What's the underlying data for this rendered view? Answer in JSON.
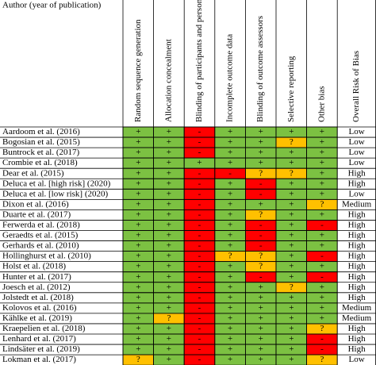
{
  "header": {
    "author": "Author (year of publication)",
    "domains": [
      "Random sequence generation",
      "Allocation concealment",
      "Blinding of participants and personnel",
      "Incomplete outcome data",
      "Blinding of outcome assessors",
      "Selective reporting",
      "Other bias"
    ],
    "overall": "Overall Risk of Bias"
  },
  "colors": {
    "+": "#7cc142",
    "?": "#ffc000",
    "-": "#ff0000"
  },
  "table": {
    "rows": [
      {
        "author": "Aardoom et al. (2016)",
        "ratings": [
          "+",
          "+",
          "-",
          "+",
          "+",
          "+",
          "+"
        ],
        "overall": "Low"
      },
      {
        "author": "Bogosian et al. (2015)",
        "ratings": [
          "+",
          "+",
          "-",
          "+",
          "+",
          "?",
          "+"
        ],
        "overall": "Low"
      },
      {
        "author": "Buntrock et al. (2017)",
        "ratings": [
          "+",
          "+",
          "-",
          "+",
          "+",
          "+",
          "+"
        ],
        "overall": "Low"
      },
      {
        "author": "Crombie et al. (2018)",
        "ratings": [
          "+",
          "+",
          "+",
          "+",
          "+",
          "+",
          "+"
        ],
        "overall": "Low"
      },
      {
        "author": "Dear et al. (2015)",
        "ratings": [
          "+",
          "+",
          "-",
          "-",
          "?",
          "?",
          "+"
        ],
        "overall": "High"
      },
      {
        "author": "Deluca  et al. [high risk] (2020)",
        "ratings": [
          "+",
          "+",
          "-",
          "+",
          "-",
          "+",
          "+"
        ],
        "overall": "High"
      },
      {
        "author": "Deluca  et al. [low risk] (2020)",
        "ratings": [
          "+",
          "+",
          "-",
          "+",
          "-",
          "+",
          "+"
        ],
        "overall": "Low"
      },
      {
        "author": "Dixon et al. (2016)",
        "ratings": [
          "+",
          "+",
          "-",
          "+",
          "+",
          "+",
          "?"
        ],
        "overall": "Medium"
      },
      {
        "author": "Duarte et al. (2017)",
        "ratings": [
          "+",
          "+",
          "-",
          "+",
          "?",
          "+",
          "+"
        ],
        "overall": "High"
      },
      {
        "author": "Ferwerda et al. (2018)",
        "ratings": [
          "+",
          "+",
          "-",
          "+",
          "-",
          "+",
          "-"
        ],
        "overall": "High"
      },
      {
        "author": "Geraedts et al. (2015)",
        "ratings": [
          "+",
          "+",
          "-",
          "+",
          "-",
          "+",
          "+"
        ],
        "overall": "High"
      },
      {
        "author": "Gerhards et al. (2010)",
        "ratings": [
          "+",
          "+",
          "-",
          "+",
          "-",
          "+",
          "+"
        ],
        "overall": "High"
      },
      {
        "author": "Hollinghurst et al. (2010)",
        "ratings": [
          "+",
          "+",
          "-",
          "?",
          "?",
          "+",
          "-"
        ],
        "overall": "High"
      },
      {
        "author": "Holst et al. (2018)",
        "ratings": [
          "+",
          "+",
          "-",
          "+",
          "?",
          "+",
          "+"
        ],
        "overall": "High"
      },
      {
        "author": "Hunter et al. (2017)",
        "ratings": [
          "+",
          "+",
          "-",
          "+",
          "-",
          "+",
          "-"
        ],
        "overall": "High"
      },
      {
        "author": "Joesch et al. (2012)",
        "ratings": [
          "+",
          "+",
          "-",
          "+",
          "+",
          "?",
          "+"
        ],
        "overall": "High"
      },
      {
        "author": "Jolstedt et al. (2018)",
        "ratings": [
          "+",
          "+",
          "-",
          "+",
          "+",
          "+",
          "+"
        ],
        "overall": "High"
      },
      {
        "author": "Kolovos et al. (2016)",
        "ratings": [
          "+",
          "+",
          "-",
          "+",
          "+",
          "+",
          "+"
        ],
        "overall": "Medium"
      },
      {
        "author": "Kählke et al. (2019)",
        "ratings": [
          "+",
          "?",
          "-",
          "+",
          "+",
          "+",
          "+"
        ],
        "overall": "Medium"
      },
      {
        "author": "Kraepelien et al. (2018)",
        "ratings": [
          "+",
          "+",
          "-",
          "+",
          "+",
          "+",
          "?"
        ],
        "overall": "High"
      },
      {
        "author": "Lenhard et al. (2017)",
        "ratings": [
          "+",
          "+",
          "-",
          "+",
          "+",
          "+",
          "-"
        ],
        "overall": "High"
      },
      {
        "author": "Lindsäter et al. (2019)",
        "ratings": [
          "+",
          "+",
          "-",
          "+",
          "+",
          "+",
          "-"
        ],
        "overall": "High"
      },
      {
        "author": "Lokman et al. (2017)",
        "ratings": [
          "?",
          "+",
          "-",
          "+",
          "+",
          "+",
          "?"
        ],
        "overall": "Low"
      }
    ]
  }
}
